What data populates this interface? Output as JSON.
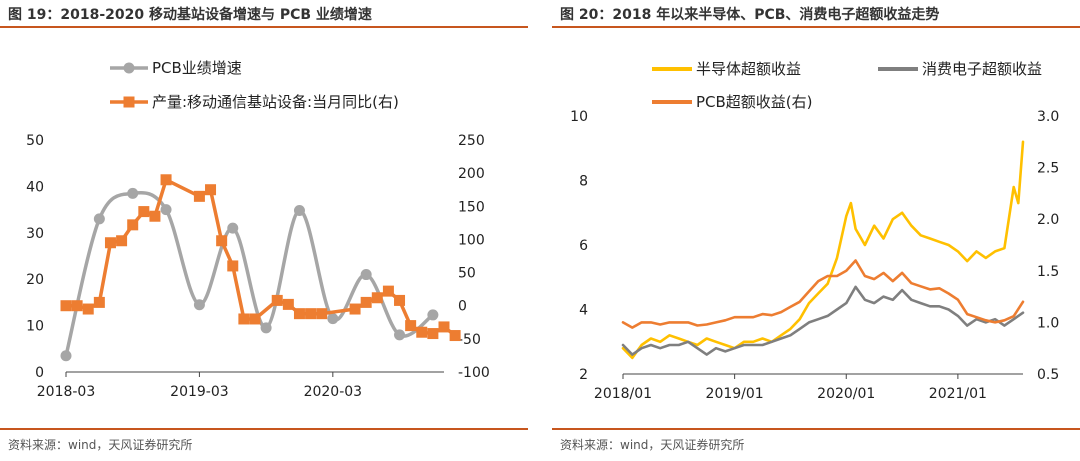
{
  "charts": [
    {
      "title": "图 19：2018-2020 移动基站设备增速与 PCB 业绩增速",
      "source": "资料来源：wind，天风证券研究所",
      "chart_data": {
        "type": "line",
        "title": "图 19：2018-2020 移动基站设备增速与 PCB 业绩增速",
        "x_tick_labels": [
          "2018-03",
          "2019-03",
          "2020-03"
        ],
        "x_tick_positions": [
          0,
          12,
          24
        ],
        "x_range": [
          0,
          34
        ],
        "left_axis": {
          "ylim": [
            0,
            50
          ],
          "ticks": [
            0,
            10,
            20,
            30,
            40,
            50
          ]
        },
        "right_axis": {
          "ylim": [
            -100,
            250
          ],
          "ticks": [
            -100,
            -50,
            0,
            50,
            100,
            150,
            200,
            250
          ]
        },
        "legend_position": "top",
        "colors": {
          "pcb": "#a6a6a6",
          "base_station": "#ed7d31"
        },
        "series": [
          {
            "name": "PCB业绩增速",
            "axis": "left",
            "color": "#a6a6a6",
            "marker": "circle",
            "smooth": true,
            "points": [
              [
                0,
                3.5
              ],
              [
                3,
                33
              ],
              [
                6,
                38.5
              ],
              [
                9,
                35
              ],
              [
                12,
                14.5
              ],
              [
                15,
                31
              ],
              [
                18,
                9.5
              ],
              [
                21,
                34.8
              ],
              [
                24,
                11.5
              ],
              [
                27,
                21
              ],
              [
                30,
                8
              ],
              [
                33,
                12.3
              ]
            ]
          },
          {
            "name": "产量:移动通信基站设备:当月同比(右)",
            "axis": "right",
            "color": "#ed7d31",
            "marker": "square",
            "smooth": false,
            "points": [
              [
                0,
                0
              ],
              [
                1,
                0
              ],
              [
                2,
                -5
              ],
              [
                3,
                5
              ],
              [
                4,
                95
              ],
              [
                5,
                98
              ],
              [
                6,
                122
              ],
              [
                7,
                142
              ],
              [
                8,
                135
              ],
              [
                9,
                190
              ],
              [
                12,
                165
              ],
              [
                13,
                175
              ],
              [
                14,
                98
              ],
              [
                15,
                60
              ],
              [
                16,
                -20
              ],
              [
                17,
                -20
              ],
              [
                19,
                8
              ],
              [
                20,
                2
              ],
              [
                21,
                -12
              ],
              [
                22,
                -12
              ],
              [
                23,
                -12
              ],
              [
                26,
                -5
              ],
              [
                27,
                5
              ],
              [
                28,
                12
              ],
              [
                29,
                22
              ],
              [
                30,
                8
              ],
              [
                31,
                -30
              ],
              [
                32,
                -40
              ],
              [
                33,
                -42
              ],
              [
                34,
                -32
              ],
              [
                35,
                -45
              ]
            ]
          }
        ]
      }
    },
    {
      "title": "图 20：2018 年以来半导体、PCB、消费电子超额收益走势",
      "source": "资料来源：wind，天风证券研究所",
      "chart_data": {
        "type": "line",
        "title": "图 20：2018 年以来半导体、PCB、消费电子超额收益走势",
        "x_tick_labels": [
          "2018/01",
          "2019/01",
          "2020/01",
          "2021/01"
        ],
        "x_tick_positions": [
          0,
          12,
          24,
          36
        ],
        "x_range": [
          0,
          43
        ],
        "left_axis": {
          "ylim": [
            2,
            10
          ],
          "ticks": [
            2,
            4,
            6,
            8,
            10
          ]
        },
        "right_axis": {
          "ylim": [
            0.5,
            3.0
          ],
          "ticks": [
            0.5,
            1.0,
            1.5,
            2.0,
            2.5,
            3.0
          ]
        },
        "legend_position": "top",
        "colors": {
          "semiconductor": "#ffc000",
          "consumer": "#7f7f7f",
          "pcb": "#ed7d31"
        },
        "series": [
          {
            "name": "半导体超额收益",
            "axis": "left",
            "color": "#ffc000",
            "points": [
              [
                0,
                2.8
              ],
              [
                1,
                2.5
              ],
              [
                2,
                2.9
              ],
              [
                3,
                3.1
              ],
              [
                4,
                3.0
              ],
              [
                5,
                3.2
              ],
              [
                6,
                3.1
              ],
              [
                7,
                3.0
              ],
              [
                8,
                2.9
              ],
              [
                9,
                3.1
              ],
              [
                10,
                3.0
              ],
              [
                11,
                2.9
              ],
              [
                12,
                2.8
              ],
              [
                13,
                3.0
              ],
              [
                14,
                3.0
              ],
              [
                15,
                3.1
              ],
              [
                16,
                3.0
              ],
              [
                17,
                3.2
              ],
              [
                18,
                3.4
              ],
              [
                19,
                3.7
              ],
              [
                20,
                4.2
              ],
              [
                21,
                4.5
              ],
              [
                22,
                4.8
              ],
              [
                23,
                5.6
              ],
              [
                24,
                6.9
              ],
              [
                24.5,
                7.3
              ],
              [
                25,
                6.5
              ],
              [
                26,
                6.0
              ],
              [
                27,
                6.6
              ],
              [
                28,
                6.2
              ],
              [
                29,
                6.8
              ],
              [
                30,
                7.0
              ],
              [
                31,
                6.6
              ],
              [
                32,
                6.3
              ],
              [
                33,
                6.2
              ],
              [
                34,
                6.1
              ],
              [
                35,
                6.0
              ],
              [
                36,
                5.8
              ],
              [
                37,
                5.5
              ],
              [
                38,
                5.8
              ],
              [
                39,
                5.6
              ],
              [
                40,
                5.8
              ],
              [
                41,
                5.9
              ],
              [
                42,
                7.8
              ],
              [
                42.5,
                7.3
              ],
              [
                43,
                9.2
              ]
            ]
          },
          {
            "name": "消费电子超额收益",
            "axis": "left",
            "color": "#7f7f7f",
            "points": [
              [
                0,
                2.9
              ],
              [
                1,
                2.6
              ],
              [
                2,
                2.8
              ],
              [
                3,
                2.9
              ],
              [
                4,
                2.8
              ],
              [
                5,
                2.9
              ],
              [
                6,
                2.9
              ],
              [
                7,
                3.0
              ],
              [
                8,
                2.8
              ],
              [
                9,
                2.6
              ],
              [
                10,
                2.8
              ],
              [
                11,
                2.7
              ],
              [
                12,
                2.8
              ],
              [
                13,
                2.9
              ],
              [
                14,
                2.9
              ],
              [
                15,
                2.9
              ],
              [
                16,
                3.0
              ],
              [
                17,
                3.1
              ],
              [
                18,
                3.2
              ],
              [
                19,
                3.4
              ],
              [
                20,
                3.6
              ],
              [
                21,
                3.7
              ],
              [
                22,
                3.8
              ],
              [
                23,
                4.0
              ],
              [
                24,
                4.2
              ],
              [
                25,
                4.7
              ],
              [
                26,
                4.3
              ],
              [
                27,
                4.2
              ],
              [
                28,
                4.4
              ],
              [
                29,
                4.3
              ],
              [
                30,
                4.6
              ],
              [
                31,
                4.3
              ],
              [
                32,
                4.2
              ],
              [
                33,
                4.1
              ],
              [
                34,
                4.1
              ],
              [
                35,
                4.0
              ],
              [
                36,
                3.8
              ],
              [
                37,
                3.5
              ],
              [
                38,
                3.7
              ],
              [
                39,
                3.6
              ],
              [
                40,
                3.7
              ],
              [
                41,
                3.5
              ],
              [
                42,
                3.7
              ],
              [
                43,
                3.9
              ]
            ]
          },
          {
            "name": "PCB超额收益(右)",
            "axis": "right",
            "color": "#ed7d31",
            "points": [
              [
                0,
                1.0
              ],
              [
                1,
                0.95
              ],
              [
                2,
                1.0
              ],
              [
                3,
                1.0
              ],
              [
                4,
                0.98
              ],
              [
                5,
                1.0
              ],
              [
                6,
                1.0
              ],
              [
                7,
                1.0
              ],
              [
                8,
                0.97
              ],
              [
                9,
                0.98
              ],
              [
                10,
                1.0
              ],
              [
                11,
                1.02
              ],
              [
                12,
                1.05
              ],
              [
                13,
                1.05
              ],
              [
                14,
                1.05
              ],
              [
                15,
                1.08
              ],
              [
                16,
                1.07
              ],
              [
                17,
                1.1
              ],
              [
                18,
                1.15
              ],
              [
                19,
                1.2
              ],
              [
                20,
                1.3
              ],
              [
                21,
                1.4
              ],
              [
                22,
                1.45
              ],
              [
                23,
                1.45
              ],
              [
                24,
                1.5
              ],
              [
                25,
                1.6
              ],
              [
                26,
                1.45
              ],
              [
                27,
                1.42
              ],
              [
                28,
                1.48
              ],
              [
                29,
                1.4
              ],
              [
                30,
                1.48
              ],
              [
                31,
                1.38
              ],
              [
                32,
                1.35
              ],
              [
                33,
                1.32
              ],
              [
                34,
                1.33
              ],
              [
                35,
                1.28
              ],
              [
                36,
                1.22
              ],
              [
                37,
                1.08
              ],
              [
                38,
                1.05
              ],
              [
                39,
                1.02
              ],
              [
                40,
                1.0
              ],
              [
                41,
                1.02
              ],
              [
                42,
                1.06
              ],
              [
                43,
                1.2
              ]
            ]
          }
        ]
      }
    }
  ]
}
